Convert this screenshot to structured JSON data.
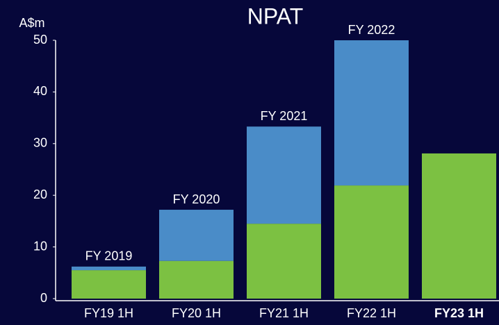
{
  "chart_data": {
    "type": "stacked_bar",
    "title": "NPAT",
    "y_axis_label": "A$m",
    "categories": [
      "FY19 1H",
      "FY20 1H",
      "FY21 1H",
      "FY22 1H",
      "FY23 1H"
    ],
    "emphasized_categories": [
      4
    ],
    "series": [
      {
        "color": "#7cc142",
        "values": [
          5.5,
          7.3,
          14.5,
          21.9,
          28.1
        ]
      },
      {
        "color": "#4a8cc8",
        "values": [
          0.7,
          9.9,
          18.8,
          28.1,
          null
        ]
      }
    ],
    "bar_labels": [
      "FY 2019",
      "FY 2020",
      "FY 2021",
      "FY 2022",
      null
    ],
    "ylim": [
      0,
      50
    ],
    "yticks": [
      0,
      10,
      20,
      30,
      40,
      50
    ],
    "grid": false
  }
}
